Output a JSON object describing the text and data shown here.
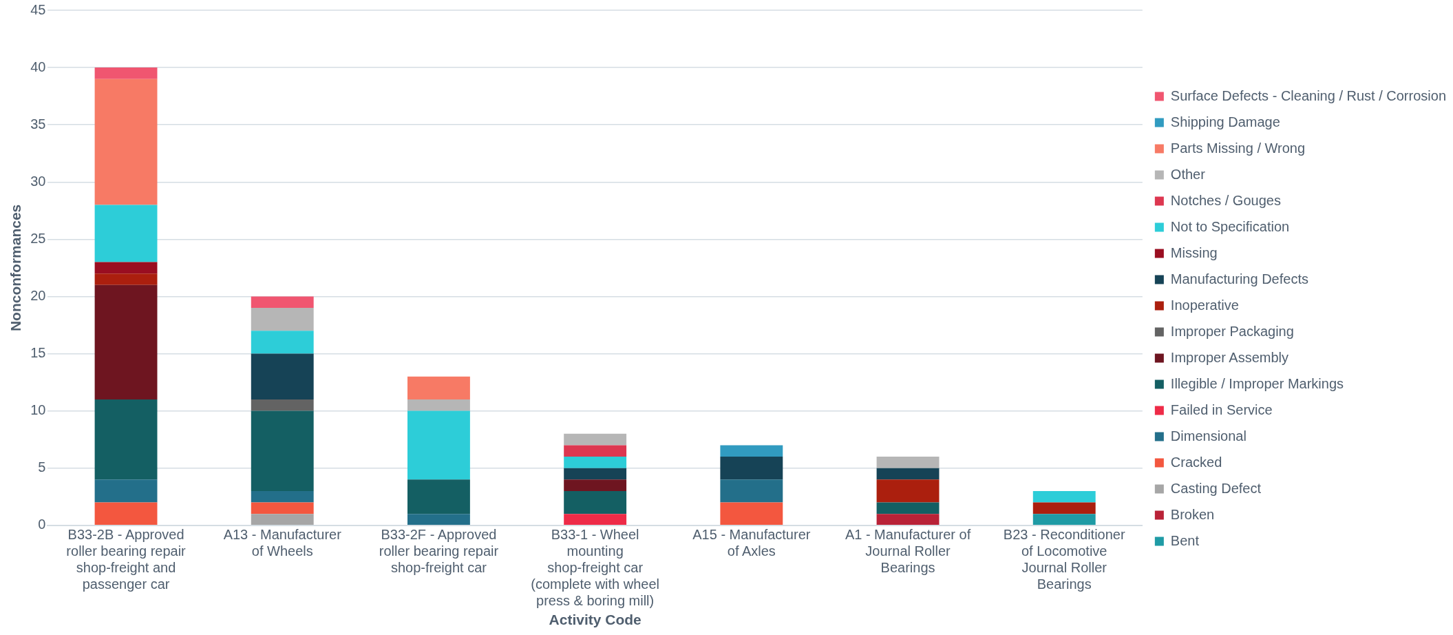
{
  "chart_data": {
    "type": "bar",
    "stacked": true,
    "xlabel": "Activity Code",
    "ylabel": "Nonconformances",
    "categories": [
      "B33-2B - Approved roller bearing repair shop-freight and passenger car",
      "A13 - Manufacturer of Wheels",
      "B33-2F - Approved roller bearing repair shop-freight car",
      "B33-1 - Wheel mounting shop-freight car (complete with wheel press & boring mill)",
      "A15 - Manufacturer of Axles",
      "A1 - Manufacturer of Journal Roller Bearings",
      "B23 - Reconditioner of Locomotive Journal Roller Bearings"
    ],
    "series": [
      {
        "name": "Bent",
        "color": "#1f9ba5",
        "values": [
          null,
          null,
          null,
          null,
          null,
          null,
          1
        ]
      },
      {
        "name": "Broken",
        "color": "#b92237",
        "values": [
          null,
          null,
          null,
          null,
          null,
          1,
          null
        ]
      },
      {
        "name": "Casting Defect",
        "color": "#a6a6a6",
        "values": [
          null,
          1,
          null,
          null,
          null,
          null,
          null
        ]
      },
      {
        "name": "Cracked",
        "color": "#f3573f",
        "values": [
          2,
          1,
          null,
          null,
          2,
          null,
          null
        ]
      },
      {
        "name": "Dimensional",
        "color": "#236f8a",
        "values": [
          2,
          1,
          1,
          null,
          2,
          null,
          null
        ]
      },
      {
        "name": "Failed in Service",
        "color": "#ee2b47",
        "values": [
          null,
          null,
          null,
          1,
          null,
          null,
          null
        ]
      },
      {
        "name": "Illegible / Improper Markings",
        "color": "#145f63",
        "values": [
          7,
          7,
          3,
          2,
          null,
          1,
          null
        ]
      },
      {
        "name": "Improper Assembly",
        "color": "#6e1520",
        "values": [
          10,
          null,
          null,
          1,
          null,
          null,
          null
        ]
      },
      {
        "name": "Improper Packaging",
        "color": "#636363",
        "values": [
          null,
          1,
          null,
          null,
          null,
          null,
          null
        ]
      },
      {
        "name": "Inoperative",
        "color": "#ab1f0e",
        "values": [
          1,
          null,
          null,
          null,
          null,
          2,
          1
        ]
      },
      {
        "name": "Manufacturing Defects",
        "color": "#164356",
        "values": [
          null,
          4,
          null,
          1,
          2,
          1,
          null
        ]
      },
      {
        "name": "Missing",
        "color": "#9a0e21",
        "values": [
          1,
          null,
          null,
          null,
          null,
          null,
          null
        ]
      },
      {
        "name": "Not to Specification",
        "color": "#2dcdd8",
        "values": [
          5,
          2,
          6,
          1,
          null,
          null,
          1
        ]
      },
      {
        "name": "Notches / Gouges",
        "color": "#dd3750",
        "values": [
          null,
          null,
          null,
          1,
          null,
          null,
          null
        ]
      },
      {
        "name": "Other",
        "color": "#b6b6b6",
        "values": [
          null,
          2,
          1,
          1,
          null,
          1,
          null
        ]
      },
      {
        "name": "Parts Missing / Wrong",
        "color": "#f77a65",
        "values": [
          11,
          null,
          2,
          null,
          null,
          null,
          null
        ]
      },
      {
        "name": "Shipping Damage",
        "color": "#319bc0",
        "values": [
          null,
          null,
          null,
          null,
          1,
          null,
          null
        ]
      },
      {
        "name": "Surface Defects - Cleaning / Rust / Corrosion",
        "color": "#f05670",
        "values": [
          1,
          1,
          null,
          null,
          null,
          null,
          null
        ]
      }
    ],
    "ylim": [
      0,
      45
    ],
    "yticks": [
      0,
      5,
      10,
      15,
      20,
      25,
      30,
      35,
      40,
      45
    ],
    "grid": "y",
    "legend": "right"
  }
}
